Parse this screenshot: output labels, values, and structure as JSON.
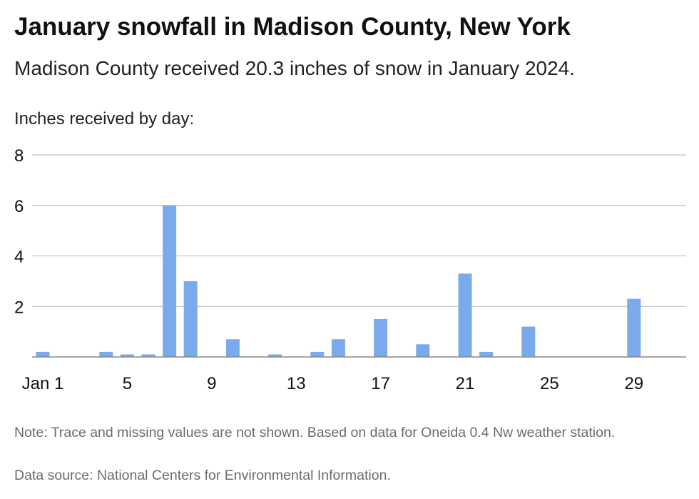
{
  "header": {
    "title": "January snowfall in Madison County, New York",
    "subtitle": "Madison County received 20.3 inches of snow in January 2024."
  },
  "footer": {
    "note": "Note: Trace and missing values are not shown. Based on data for Oneida 0.4 Nw weather station.",
    "source": "Data source: National Centers for Environmental Information."
  },
  "chart_data": {
    "type": "bar",
    "title": "January snowfall in Madison County, New York",
    "ylabel": "Inches received by day:",
    "xlabel": "",
    "ylim": [
      0,
      8
    ],
    "yticks": [
      2,
      4,
      6,
      8
    ],
    "xtick_labels": [
      {
        "day": 1,
        "label": "Jan 1"
      },
      {
        "day": 5,
        "label": "5"
      },
      {
        "day": 9,
        "label": "9"
      },
      {
        "day": 13,
        "label": "13"
      },
      {
        "day": 17,
        "label": "17"
      },
      {
        "day": 21,
        "label": "21"
      },
      {
        "day": 25,
        "label": "25"
      },
      {
        "day": 29,
        "label": "29"
      }
    ],
    "grid": true,
    "bar_color": "#7aaaeb",
    "days": [
      1,
      2,
      3,
      4,
      5,
      6,
      7,
      8,
      9,
      10,
      11,
      12,
      13,
      14,
      15,
      16,
      17,
      18,
      19,
      20,
      21,
      22,
      23,
      24,
      25,
      26,
      27,
      28,
      29,
      30,
      31
    ],
    "values": [
      0.2,
      0,
      0,
      0.2,
      0.1,
      0.1,
      6.0,
      3.0,
      0,
      0.7,
      0,
      0.1,
      0,
      0.2,
      0.7,
      0,
      1.5,
      0,
      0.5,
      0,
      3.3,
      0.2,
      0,
      1.2,
      0,
      0,
      0,
      0,
      2.3,
      0,
      0
    ]
  }
}
